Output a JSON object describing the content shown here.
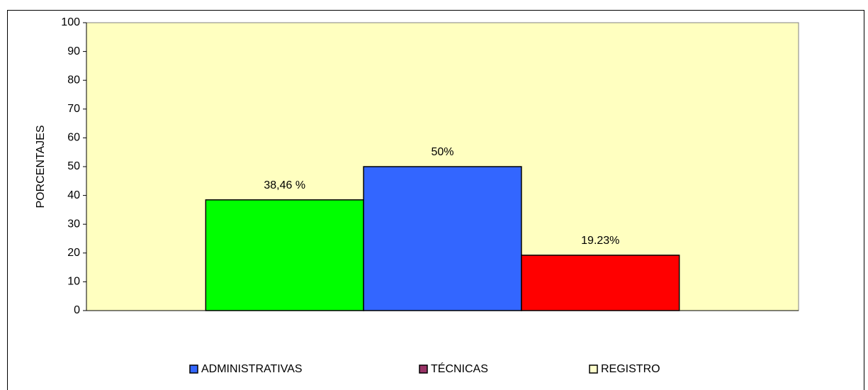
{
  "chart_data": {
    "type": "bar",
    "y_label": "PORCENTAJES",
    "categories": [
      null
    ],
    "series": [
      {
        "name": "ADMINISTRATIVAS",
        "color": "#00ff00",
        "legend_color": "#3366ff",
        "values": [
          38.46
        ],
        "value_labels": [
          "38,46 %"
        ]
      },
      {
        "name": "TÉCNICAS",
        "color": "#3366ff",
        "legend_color": "#993366",
        "values": [
          50
        ],
        "value_labels": [
          "50%"
        ]
      },
      {
        "name": "REGISTRO",
        "color": "#ff0000",
        "legend_color": "#ffffcc",
        "values": [
          19.23
        ],
        "value_labels": [
          "19.23%"
        ]
      }
    ],
    "ylim": [
      0,
      100
    ],
    "yticks": [
      0,
      10,
      20,
      30,
      40,
      50,
      60,
      70,
      80,
      90,
      100
    ],
    "grid": false,
    "plot_background": "#ffffc0",
    "legend": "bottom"
  }
}
